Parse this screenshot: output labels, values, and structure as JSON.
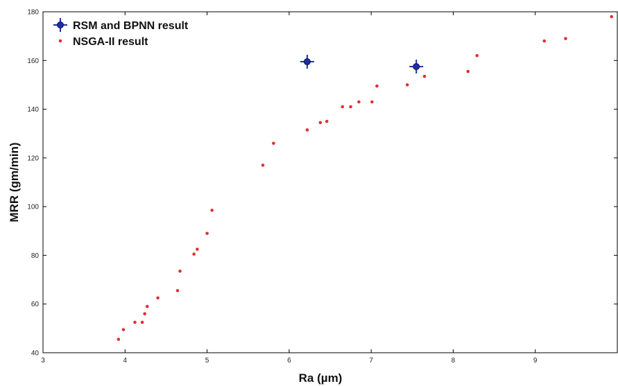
{
  "chart_data": {
    "type": "scatter",
    "xlabel": "Ra (µm)",
    "ylabel": "MRR (gm/min)",
    "xlim": [
      3,
      10
    ],
    "ylim": [
      40,
      180
    ],
    "x_ticks": [
      "3",
      "4",
      "5",
      "6",
      "7",
      "8",
      "9"
    ],
    "y_ticks": [
      "40",
      "60",
      "80",
      "100",
      "120",
      "140",
      "160",
      "180"
    ],
    "grid": false,
    "legend_position": "top-left",
    "series": [
      {
        "name": "RSM and BPNN result",
        "marker": "plus-circle",
        "color": "#1f2f9e",
        "points": [
          [
            6.22,
            159.5
          ],
          [
            7.55,
            157.5
          ]
        ]
      },
      {
        "name": "NSGA-II result",
        "marker": "dot",
        "color": "#e03030",
        "points": [
          [
            3.92,
            45.5
          ],
          [
            3.98,
            49.5
          ],
          [
            4.12,
            52.5
          ],
          [
            4.21,
            52.5
          ],
          [
            4.24,
            56.0
          ],
          [
            4.27,
            59.0
          ],
          [
            4.4,
            62.5
          ],
          [
            4.64,
            65.5
          ],
          [
            4.67,
            73.5
          ],
          [
            4.84,
            80.5
          ],
          [
            4.88,
            82.5
          ],
          [
            5.0,
            89.0
          ],
          [
            5.06,
            98.5
          ],
          [
            5.68,
            117.0
          ],
          [
            5.81,
            126.0
          ],
          [
            6.22,
            131.5
          ],
          [
            6.38,
            134.5
          ],
          [
            6.46,
            135.0
          ],
          [
            6.65,
            141.0
          ],
          [
            6.75,
            141.0
          ],
          [
            6.85,
            143.0
          ],
          [
            7.01,
            143.0
          ],
          [
            7.07,
            149.5
          ],
          [
            7.44,
            150.0
          ],
          [
            7.65,
            153.5
          ],
          [
            8.18,
            155.5
          ],
          [
            8.29,
            162.0
          ],
          [
            9.11,
            168.0
          ],
          [
            9.37,
            169.0
          ],
          [
            9.93,
            178.0
          ]
        ]
      }
    ]
  }
}
